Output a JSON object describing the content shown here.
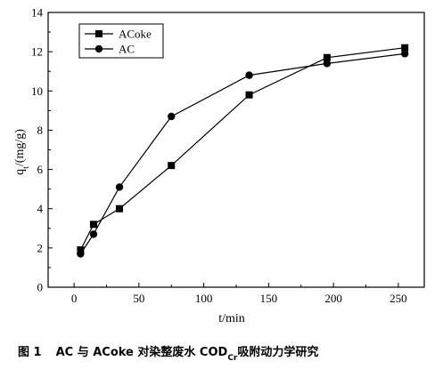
{
  "chart_data": {
    "type": "line",
    "xlabel": "t/min",
    "ylabel_main": "q",
    "ylabel_sub": "t",
    "ylabel_unit": "/(mg/g)",
    "xlim": [
      -20,
      270
    ],
    "ylim": [
      0,
      14
    ],
    "x_ticks": [
      0,
      50,
      100,
      150,
      200,
      250
    ],
    "y_ticks": [
      0,
      2,
      4,
      6,
      8,
      10,
      12,
      14
    ],
    "legend_position": "top-left",
    "series": [
      {
        "name": "ACoke",
        "marker": "square",
        "color": "#000000",
        "x": [
          5,
          15,
          35,
          75,
          135,
          195,
          255
        ],
        "y": [
          1.9,
          3.2,
          4.0,
          6.2,
          9.8,
          11.7,
          12.2
        ]
      },
      {
        "name": "AC",
        "marker": "circle",
        "color": "#000000",
        "x": [
          5,
          15,
          35,
          75,
          135,
          195,
          255
        ],
        "y": [
          1.7,
          2.7,
          5.1,
          8.7,
          10.8,
          11.4,
          11.9
        ]
      }
    ],
    "caption": {
      "prefix": "图 1",
      "main": "AC 与 ACoke 对染整废水 COD",
      "sub": "Cr",
      "suffix": "吸附动力学研究"
    }
  }
}
